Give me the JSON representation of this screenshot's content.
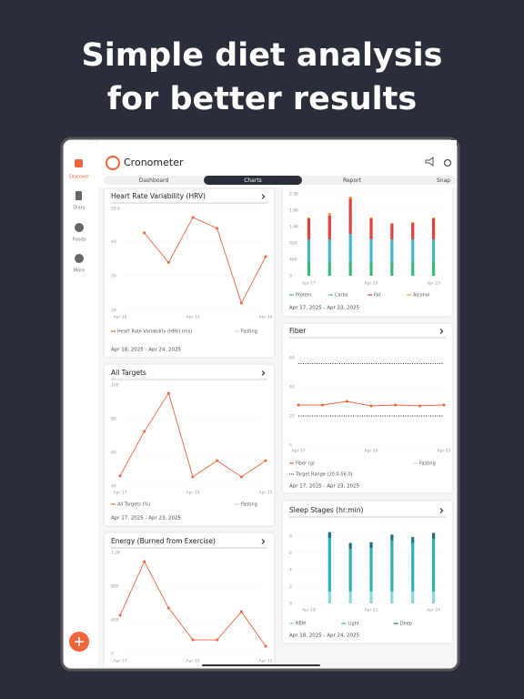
{
  "headline": [
    "Simple diet analysis",
    "for better results"
  ],
  "app": {
    "name": "Cronometer"
  },
  "tabs": [
    "Dashboard",
    "Charts",
    "Report",
    "Snap"
  ],
  "sidebar": [
    "Discover",
    "Diary",
    "Foods",
    "More"
  ],
  "chart_data": [
    {
      "type": "line",
      "title": "Heart Rate Variability (HRV)",
      "categories": [
        "Apr 18",
        null,
        null,
        "Apr 21",
        null,
        null,
        "Apr 24"
      ],
      "series": [
        {
          "name": "Heart Rate Variability (HRV) (ms)",
          "color": "#f0643c",
          "values": [
            null,
            51.5,
            42.9,
            56,
            52.8,
            31.1,
            44.6
          ]
        }
      ],
      "ylim": [
        29,
        58.6
      ],
      "yticks": [
        29,
        39,
        49,
        58.6
      ],
      "extra_legend": [
        {
          "name": "Fasting",
          "color": "#d8d8d8"
        }
      ],
      "date_range": "Apr 18, 2025 - Apr 24, 2025"
    },
    {
      "type": "line",
      "title": "All Targets",
      "categories": [
        "Apr 17",
        null,
        null,
        "Apr 20",
        null,
        null,
        "Apr 23"
      ],
      "series": [
        {
          "name": "All Targets (%)",
          "color": "#f0643c",
          "values": [
            46,
            72.4,
            95.1,
            45.4,
            55.1,
            45.4,
            55.1
          ]
        }
      ],
      "ylim": [
        40,
        100
      ],
      "yticks": [
        40,
        60,
        80,
        100
      ],
      "extra_legend": [
        {
          "name": "Fasting",
          "color": "#d8d8d8"
        }
      ],
      "date_range": "Apr 17, 2025 - Apr 23, 2025"
    },
    {
      "type": "line",
      "title": "Energy (Burned from Exercise)",
      "categories": [
        "Apr 17",
        null,
        null,
        "Apr 20",
        null,
        null,
        "Apr 23"
      ],
      "series": [
        {
          "color": "#f0643c",
          "values": [
            454,
            1092,
            540,
            162,
            162,
            497,
            86
          ]
        }
      ],
      "ylim": [
        0,
        1200
      ],
      "yticks": [
        0,
        400,
        800,
        {
          "value": 1200,
          "label": "1.2K"
        }
      ]
    },
    {
      "type": "stacked_bar",
      "categories": [
        "Apr 17",
        null,
        null,
        "Apr 20",
        null,
        null,
        "Apr 23"
      ],
      "series": [
        {
          "name": "Protein",
          "color": "#3cb878",
          "values": [
            383,
            383,
            383,
            383,
            383,
            383,
            383
          ]
        },
        {
          "name": "Carbs",
          "color": "#45b5c9",
          "values": [
            639,
            639,
            792,
            639,
            639,
            639,
            639
          ]
        },
        {
          "name": "Fat",
          "color": "#e0413a",
          "values": [
            588,
            664,
            997,
            588,
            434,
            460,
            588
          ]
        },
        {
          "name": "Alcohol",
          "color": "#f0a63c",
          "values": [
            26,
            77,
            51,
            26,
            26,
            26,
            26
          ]
        }
      ],
      "ylim": [
        0,
        2300
      ],
      "yticks": [
        0,
        460,
        920,
        {
          "value": 1380,
          "label": "1.4K"
        },
        {
          "value": 1840,
          "label": "1.8K"
        },
        {
          "value": 2300,
          "label": "2.3K"
        }
      ],
      "date_range": "Apr 17, 2025 - Apr 23, 2025"
    },
    {
      "type": "line",
      "title": "Fiber",
      "categories": [
        "Apr 17",
        null,
        null,
        "Apr 20",
        null,
        null,
        "Apr 23"
      ],
      "series": [
        {
          "name": "Fiber (g)",
          "color": "#f0643c",
          "values": [
            27.5,
            27.5,
            30,
            26.9,
            27.5,
            26.9,
            27.5
          ]
        }
      ],
      "ylim": [
        0,
        70
      ],
      "yticks": [
        0,
        20,
        40,
        60
      ],
      "target_range": [
        20,
        56
      ],
      "target_label": "Target Range (20.0-56.0)",
      "extra_legend": [
        {
          "name": "Fasting",
          "color": "#d8d8d8"
        }
      ],
      "date_range": "Apr 17, 2025 - Apr 23, 2025"
    },
    {
      "type": "stacked_bar",
      "title": "Sleep Stages (hr:min)",
      "categories": [
        "Apr 18",
        null,
        null,
        "Apr 21",
        null,
        null,
        "Apr 24"
      ],
      "series": [
        {
          "name": "REM",
          "color": "#8fd6df",
          "values": [
            null,
            1.4,
            1.4,
            1.4,
            1.4,
            1.4,
            1.4
          ]
        },
        {
          "name": "Light",
          "color": "#2fb0b8",
          "values": [
            null,
            6.4,
            5.1,
            5.2,
            6.1,
            5.8,
            6.3
          ]
        },
        {
          "name": "Deep",
          "color": "#1f6f7a",
          "values": [
            null,
            0.7,
            0.7,
            0.7,
            0.7,
            0.7,
            0.7
          ]
        }
      ],
      "ylim": [
        0,
        9
      ],
      "yticks": [
        0,
        2,
        4,
        6,
        8
      ],
      "date_range": "Apr 18, 2025 - Apr 24, 2025"
    }
  ]
}
